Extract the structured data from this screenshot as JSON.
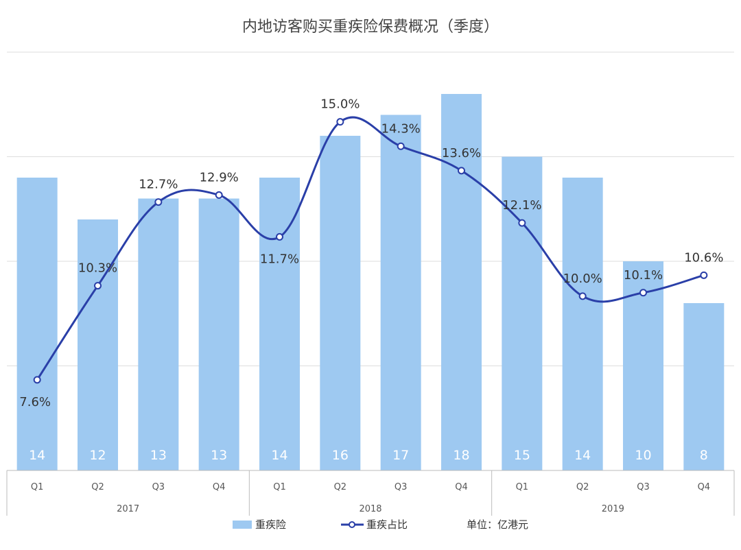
{
  "chart_data": {
    "type": "bar+line",
    "title": "内地访客购买重疾险保费概况（季度）",
    "categories": [
      "Q1",
      "Q2",
      "Q3",
      "Q4",
      "Q1",
      "Q2",
      "Q3",
      "Q4",
      "Q1",
      "Q2",
      "Q3",
      "Q4"
    ],
    "years": [
      {
        "label": "2017",
        "span": [
          0,
          3
        ]
      },
      {
        "label": "2018",
        "span": [
          4,
          7
        ]
      },
      {
        "label": "2019",
        "span": [
          8,
          11
        ]
      }
    ],
    "series": [
      {
        "name": "重疾险",
        "type": "bar",
        "axis": "left",
        "values": [
          14,
          12,
          13,
          13,
          14,
          16,
          17,
          18,
          15,
          14,
          10,
          8
        ],
        "value_labels": [
          "14",
          "12",
          "13",
          "13",
          "14",
          "16",
          "17",
          "18",
          "15",
          "14",
          "10",
          "8"
        ]
      },
      {
        "name": "重疾占比",
        "type": "line",
        "axis": "right",
        "values": [
          7.6,
          10.3,
          12.7,
          12.9,
          11.7,
          15.0,
          14.3,
          13.6,
          12.1,
          10.0,
          10.1,
          10.6
        ],
        "value_labels": [
          "7.6%",
          "10.3%",
          "12.7%",
          "12.9%",
          "11.7%",
          "15.0%",
          "14.3%",
          "13.6%",
          "12.1%",
          "10.0%",
          "10.1%",
          "10.6%"
        ]
      }
    ],
    "left_axis": {
      "range": [
        0,
        20
      ],
      "visible": false
    },
    "right_axis": {
      "range": [
        5,
        17
      ],
      "visible": false
    },
    "grid": "horizontal",
    "legend_position": "bottom",
    "unit_note": "单位：亿港元",
    "colors": {
      "bar": "#9ec9f1",
      "line": "#2a3fa8",
      "grid": "#dddddd",
      "marker_fill": "#ffffff"
    }
  }
}
